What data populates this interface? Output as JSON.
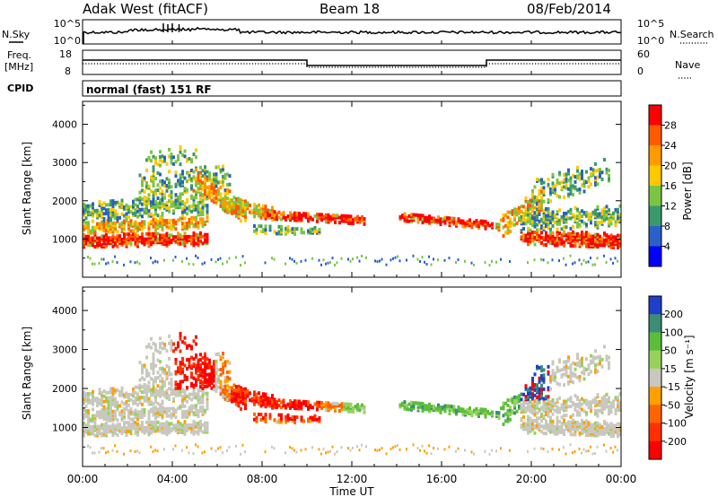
{
  "header": {
    "station": "Adak West (fitACF)",
    "beam": "Beam 18",
    "date": "08/Feb/2014"
  },
  "noise_panel": {
    "left_label": "N.Sky",
    "right_label": "N.Search",
    "left_ticks": [
      "10^5",
      "10^0"
    ],
    "right_ticks": [
      "10^5",
      "10^0"
    ]
  },
  "freq_panel": {
    "left_label_1": "Freq.",
    "left_label_2": "[MHz]",
    "right_label": "Nave",
    "left_ticks": [
      "18",
      "8"
    ],
    "right_ticks": [
      "60",
      "0"
    ]
  },
  "cpid": {
    "label": "CPID",
    "value": "normal (fast) 151 RF"
  },
  "chart_data": [
    {
      "type": "heatmap",
      "panel": "power",
      "ylabel": "Slant Range [km]",
      "xlabel": "Time UT",
      "yticks": [
        "1000",
        "2000",
        "3000",
        "4000"
      ],
      "ylim": [
        0,
        4600
      ],
      "xticks": [
        "00:00",
        "04:00",
        "08:00",
        "12:00",
        "16:00",
        "20:00",
        "00:00"
      ],
      "xlim_hours": [
        0,
        24
      ],
      "colorbar_label": "Power [dB]",
      "colorbar_ticks": [
        "28",
        "24",
        "20",
        "16",
        "12",
        "8",
        "4"
      ],
      "colorbar_colors": [
        "#ff0000",
        "#ff5a00",
        "#ff9a00",
        "#ffc800",
        "#7ac542",
        "#3a9a6a",
        "#2a60c8",
        "#0000ff"
      ]
    },
    {
      "type": "heatmap",
      "panel": "velocity",
      "ylabel": "Slant Range [km]",
      "xlabel": "Time UT",
      "yticks": [
        "1000",
        "2000",
        "3000",
        "4000"
      ],
      "ylim": [
        0,
        4600
      ],
      "xticks": [
        "00:00",
        "04:00",
        "08:00",
        "12:00",
        "16:00",
        "20:00",
        "00:00"
      ],
      "xlim_hours": [
        0,
        24
      ],
      "colorbar_label": "Velocity [m s⁻¹]",
      "colorbar_ticks": [
        "200",
        "100",
        "50",
        "15",
        "-15",
        "-50",
        "-100",
        "-200"
      ],
      "colorbar_colors": [
        "#1f3fc8",
        "#3c8c78",
        "#5abe3c",
        "#96d25a",
        "#c8c8c0",
        "#ffa000",
        "#ff6400",
        "#ff3000",
        "#ff0000"
      ]
    }
  ],
  "axis": {
    "xlabel": "Time UT"
  }
}
